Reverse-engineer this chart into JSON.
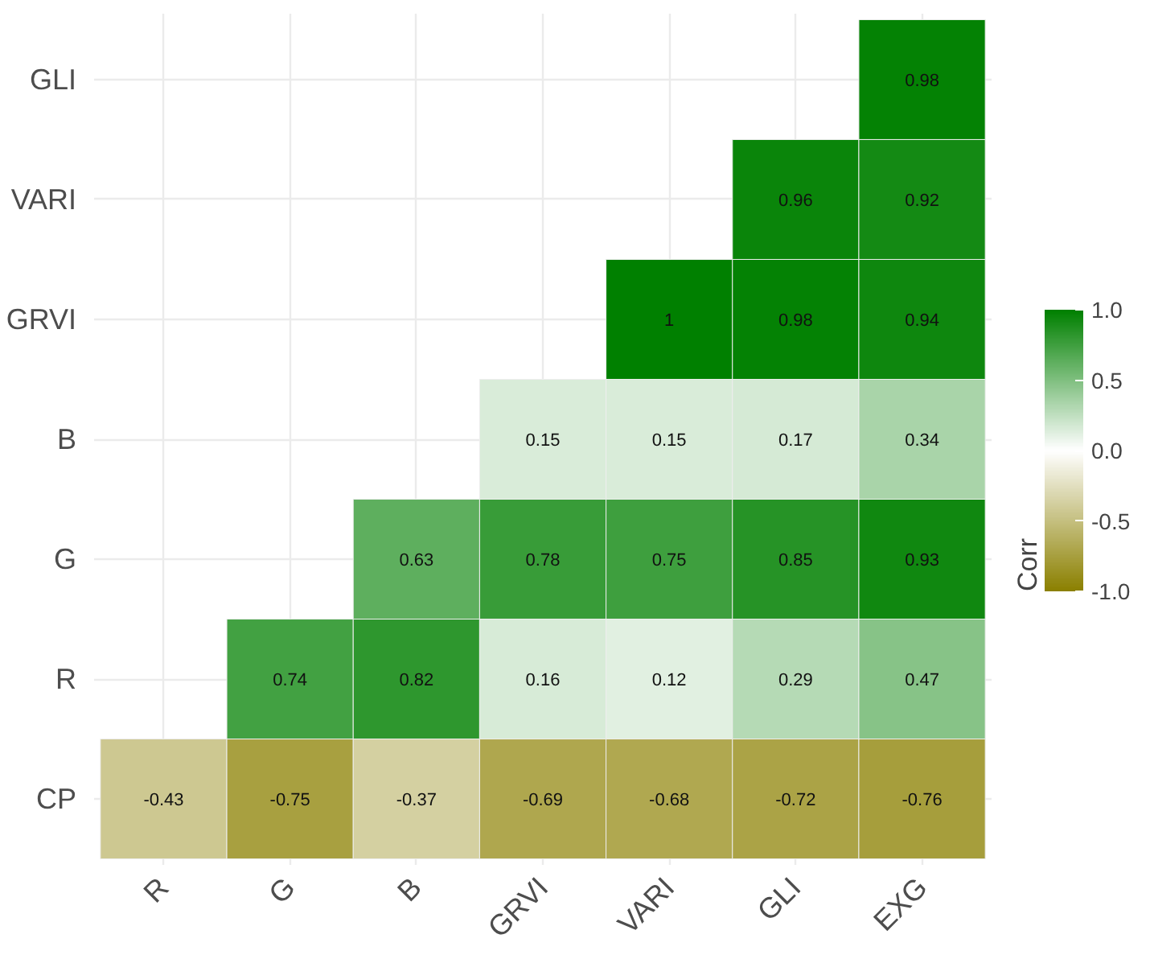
{
  "chart_data": {
    "type": "heatmap",
    "categories": [
      "R",
      "G",
      "B",
      "GRVI",
      "VARI",
      "GLI",
      "EXG"
    ],
    "y_categories": [
      "GLI",
      "VARI",
      "GRVI",
      "B",
      "G",
      "R",
      "CP"
    ],
    "cells": [
      [
        null,
        null,
        null,
        null,
        null,
        null,
        0.98
      ],
      [
        null,
        null,
        null,
        null,
        null,
        0.96,
        0.92
      ],
      [
        null,
        null,
        null,
        null,
        1,
        0.98,
        0.94
      ],
      [
        null,
        null,
        null,
        0.15,
        0.15,
        0.17,
        0.34
      ],
      [
        null,
        null,
        0.63,
        0.78,
        0.75,
        0.85,
        0.93
      ],
      [
        null,
        0.74,
        0.82,
        0.16,
        0.12,
        0.29,
        0.47
      ],
      [
        -0.43,
        -0.75,
        -0.37,
        -0.69,
        -0.68,
        -0.72,
        -0.76
      ]
    ],
    "data_labels": true,
    "clabel": "Corr",
    "clim": [
      -1,
      1
    ],
    "cticks": [
      {
        "value": -1,
        "label": "-1.0"
      },
      {
        "value": -0.5,
        "label": "-0.5"
      },
      {
        "value": 0,
        "label": "0.0"
      },
      {
        "value": 0.5,
        "label": "0.5"
      },
      {
        "value": 1,
        "label": "1.0"
      }
    ],
    "grid": true
  }
}
